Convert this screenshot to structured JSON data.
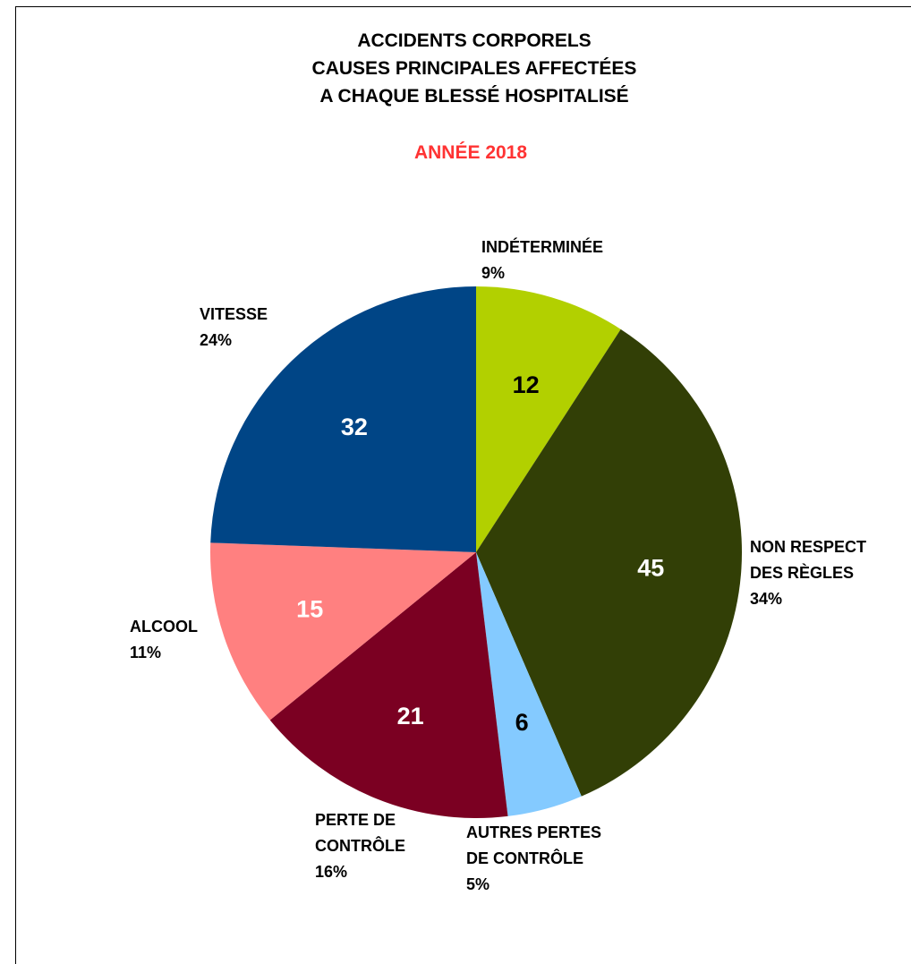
{
  "chart_data": {
    "type": "pie",
    "title": [
      "ACCIDENTS CORPORELS",
      "CAUSES PRINCIPALES AFFECTÉES",
      "A CHAQUE BLESSÉ HOSPITALISÉ"
    ],
    "subtitle": "ANNÉE 2018",
    "subtitle_color": "#ff3333",
    "slices": [
      {
        "label": [
          "INDÉTERMINÉE"
        ],
        "value": 12,
        "percent": "9%",
        "color": "#b2d000",
        "text_color": "#000000"
      },
      {
        "label": [
          "NON RESPECT",
          "DES RÈGLES"
        ],
        "value": 45,
        "percent": "34%",
        "color": "#323f06",
        "text_color": "#ffffff"
      },
      {
        "label": [
          "AUTRES PERTES",
          "DE CONTRÔLE"
        ],
        "value": 6,
        "percent": "5%",
        "color": "#84caff",
        "text_color": "#000000"
      },
      {
        "label": [
          "PERTE DE",
          "CONTRÔLE"
        ],
        "value": 21,
        "percent": "16%",
        "color": "#7b0022",
        "text_color": "#ffffff"
      },
      {
        "label": [
          "ALCOOL"
        ],
        "value": 15,
        "percent": "11%",
        "color": "#ff8080",
        "text_color": "#ffffff"
      },
      {
        "label": [
          "VITESSE"
        ],
        "value": 32,
        "percent": "24%",
        "color": "#004586",
        "text_color": "#ffffff"
      }
    ]
  }
}
